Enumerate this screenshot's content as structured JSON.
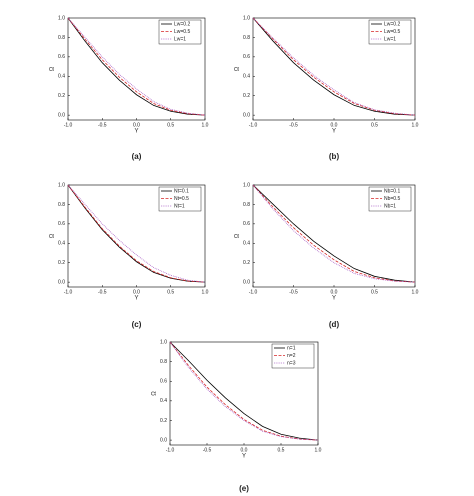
{
  "chart_data": [
    {
      "type": "line",
      "caption": "(a)",
      "xlabel": "Y",
      "ylabel": "Ω",
      "legend": "upper right",
      "x": [
        -1,
        -0.75,
        -0.5,
        -0.25,
        0,
        0.25,
        0.5,
        0.75,
        1
      ],
      "series": [
        {
          "name": "Lw=0.2",
          "color": "#000000",
          "dash": "solid",
          "values": [
            1,
            0.76,
            0.54,
            0.36,
            0.21,
            0.1,
            0.04,
            0.01,
            0
          ]
        },
        {
          "name": "Lw=0.5",
          "color": "#d62728",
          "dash": "dashed",
          "values": [
            1,
            0.78,
            0.57,
            0.39,
            0.24,
            0.12,
            0.05,
            0.015,
            0
          ]
        },
        {
          "name": "Lw=1",
          "color": "#a050c0",
          "dash": "dotted",
          "values": [
            1,
            0.8,
            0.6,
            0.42,
            0.27,
            0.14,
            0.06,
            0.02,
            0
          ]
        }
      ],
      "xlim": [
        -1,
        1
      ],
      "ylim": [
        -0.05,
        1
      ],
      "xticks": [
        {
          "value": -1,
          "label": "-1.0"
        },
        -0.5,
        {
          "value": 0,
          "label": "0.0"
        },
        0.5,
        {
          "value": 1,
          "label": "1.0"
        }
      ],
      "yticks": [
        {
          "value": 0,
          "label": "0.0"
        },
        0.2,
        0.4,
        0.6,
        0.8,
        {
          "value": 1,
          "label": "1.0"
        }
      ]
    },
    {
      "type": "line",
      "caption": "(b)",
      "xlabel": "Y",
      "ylabel": "Ω",
      "legend": "upper right",
      "x": [
        -1,
        -0.75,
        -0.5,
        -0.25,
        0,
        0.25,
        0.5,
        0.75,
        1
      ],
      "series": [
        {
          "name": "Lw=0.2",
          "color": "#000000",
          "dash": "solid",
          "values": [
            1,
            0.76,
            0.54,
            0.36,
            0.21,
            0.1,
            0.04,
            0.01,
            0
          ]
        },
        {
          "name": "Lw=0.5",
          "color": "#d62728",
          "dash": "dashed",
          "values": [
            1,
            0.78,
            0.57,
            0.39,
            0.24,
            0.12,
            0.05,
            0.015,
            0
          ]
        },
        {
          "name": "Lw=1",
          "color": "#a050c0",
          "dash": "dotted",
          "values": [
            1,
            0.79,
            0.59,
            0.41,
            0.26,
            0.13,
            0.055,
            0.02,
            0
          ]
        }
      ],
      "xlim": [
        -1,
        1
      ],
      "ylim": [
        -0.05,
        1
      ],
      "xticks": [
        {
          "value": -1,
          "label": "-1.0"
        },
        -0.5,
        {
          "value": 0,
          "label": "0.0"
        },
        0.5,
        {
          "value": 1,
          "label": "1.0"
        }
      ],
      "yticks": [
        {
          "value": 0,
          "label": "0.0"
        },
        0.2,
        0.4,
        0.6,
        0.8,
        {
          "value": 1,
          "label": "1.0"
        }
      ]
    },
    {
      "type": "line",
      "caption": "(c)",
      "xlabel": "Y",
      "ylabel": "Ω",
      "legend": "upper right",
      "x": [
        -1,
        -0.75,
        -0.5,
        -0.25,
        0,
        0.25,
        0.5,
        0.75,
        1
      ],
      "series": [
        {
          "name": "Nt=0.1",
          "color": "#000000",
          "dash": "solid",
          "values": [
            1,
            0.76,
            0.54,
            0.36,
            0.21,
            0.1,
            0.04,
            0.01,
            0
          ]
        },
        {
          "name": "Nt=0.5",
          "color": "#d62728",
          "dash": "dashed",
          "values": [
            1,
            0.77,
            0.55,
            0.37,
            0.22,
            0.11,
            0.045,
            0.012,
            0
          ]
        },
        {
          "name": "Nt=1",
          "color": "#a050c0",
          "dash": "dotted",
          "values": [
            1,
            0.8,
            0.6,
            0.43,
            0.28,
            0.15,
            0.07,
            0.02,
            0
          ]
        }
      ],
      "xlim": [
        -1,
        1
      ],
      "ylim": [
        -0.05,
        1
      ],
      "xticks": [
        {
          "value": -1,
          "label": "-1.0"
        },
        -0.5,
        {
          "value": 0,
          "label": "0.0"
        },
        0.5,
        {
          "value": 1,
          "label": "1.0"
        }
      ],
      "yticks": [
        {
          "value": 0,
          "label": "0.0"
        },
        0.2,
        0.4,
        0.6,
        0.8,
        {
          "value": 1,
          "label": "1.0"
        }
      ]
    },
    {
      "type": "line",
      "caption": "(d)",
      "xlabel": "Y",
      "ylabel": "Ω",
      "legend": "upper right",
      "x": [
        -1,
        -0.75,
        -0.5,
        -0.25,
        0,
        0.25,
        0.5,
        0.75,
        1
      ],
      "series": [
        {
          "name": "Nb=0.1",
          "color": "#000000",
          "dash": "solid",
          "values": [
            1,
            0.8,
            0.6,
            0.42,
            0.27,
            0.14,
            0.06,
            0.02,
            0
          ]
        },
        {
          "name": "Nb=0.5",
          "color": "#d62728",
          "dash": "dashed",
          "values": [
            1,
            0.77,
            0.56,
            0.38,
            0.23,
            0.11,
            0.045,
            0.012,
            0
          ]
        },
        {
          "name": "Nb=1",
          "color": "#a050c0",
          "dash": "dotted",
          "values": [
            1,
            0.75,
            0.53,
            0.35,
            0.2,
            0.09,
            0.035,
            0.01,
            0
          ]
        }
      ],
      "xlim": [
        -1,
        1
      ],
      "ylim": [
        -0.05,
        1
      ],
      "xticks": [
        {
          "value": -1,
          "label": "-1.0"
        },
        -0.5,
        {
          "value": 0,
          "label": "0.0"
        },
        0.5,
        {
          "value": 1,
          "label": "1.0"
        }
      ],
      "yticks": [
        {
          "value": 0,
          "label": "0.0"
        },
        0.2,
        0.4,
        0.6,
        0.8,
        {
          "value": 1,
          "label": "1.0"
        }
      ]
    },
    {
      "type": "line",
      "caption": "(e)",
      "xlabel": "Y",
      "ylabel": "Ω",
      "legend": "upper right",
      "x": [
        -1,
        -0.75,
        -0.5,
        -0.25,
        0,
        0.25,
        0.5,
        0.75,
        1
      ],
      "series": [
        {
          "name": "n=1",
          "color": "#000000",
          "dash": "solid",
          "values": [
            1,
            0.81,
            0.61,
            0.43,
            0.27,
            0.14,
            0.06,
            0.02,
            0
          ]
        },
        {
          "name": "n=2",
          "color": "#d62728",
          "dash": "dashed",
          "values": [
            1,
            0.76,
            0.54,
            0.36,
            0.21,
            0.1,
            0.04,
            0.01,
            0
          ]
        },
        {
          "name": "n=3",
          "color": "#a050c0",
          "dash": "dotted",
          "values": [
            1,
            0.74,
            0.52,
            0.34,
            0.2,
            0.09,
            0.035,
            0.01,
            0
          ]
        }
      ],
      "xlim": [
        -1,
        1
      ],
      "ylim": [
        -0.05,
        1
      ],
      "xticks": [
        {
          "value": -1,
          "label": "-1.0"
        },
        -0.5,
        {
          "value": 0,
          "label": "0.0"
        },
        0.5,
        {
          "value": 1,
          "label": "1.0"
        }
      ],
      "yticks": [
        {
          "value": 0,
          "label": "0.0"
        },
        0.2,
        0.4,
        0.6,
        0.8,
        {
          "value": 1,
          "label": "1.0"
        }
      ]
    }
  ]
}
